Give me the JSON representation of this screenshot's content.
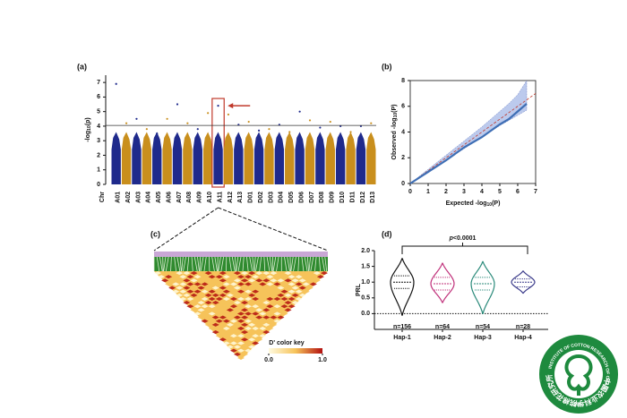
{
  "chart_data": [
    {
      "type": "manhattan",
      "panel": "(a)",
      "ylabel": {
        "main": "-log",
        "sub": "10",
        "tail": "(p)"
      },
      "xlabel": "Chr",
      "categories": [
        "A01",
        "A02",
        "A03",
        "A04",
        "A05",
        "A06",
        "A07",
        "A08",
        "A09",
        "A10",
        "A11",
        "A12",
        "A13",
        "D01",
        "D02",
        "D03",
        "D04",
        "D05",
        "D06",
        "D07",
        "D08",
        "D09",
        "D10",
        "D11",
        "D12",
        "D13"
      ],
      "values": [
        6.9,
        4.2,
        4.5,
        3.8,
        3.5,
        4.5,
        5.5,
        4.2,
        3.8,
        4.9,
        5.4,
        4.8,
        4.1,
        4.3,
        3.7,
        3.8,
        4.1,
        3.6,
        5.0,
        4.4,
        3.9,
        4.3,
        4.0,
        3.6,
        4.0,
        4.2
      ],
      "colors": [
        "#1f2a8c",
        "#c98f1d"
      ],
      "threshold": 4.05,
      "highlight": "A11",
      "ylim": [
        0,
        7.5
      ],
      "yticks": [
        0,
        1,
        2,
        3,
        4,
        5,
        6,
        7
      ]
    },
    {
      "type": "line",
      "panel": "(b)",
      "xlabel": {
        "main": "Expected -log",
        "sub": "10",
        "tail": "(P)"
      },
      "ylabel": {
        "main": "Observed -log",
        "sub": "10",
        "tail": "(P)"
      },
      "x": [
        0,
        1,
        2,
        3,
        4,
        5,
        5.5,
        6,
        6.5
      ],
      "values": [
        0,
        0.9,
        1.8,
        2.8,
        3.6,
        4.6,
        5.0,
        5.6,
        6.2
      ],
      "band_upper": [
        0,
        1.1,
        2.2,
        3.3,
        4.4,
        5.6,
        6.2,
        6.9,
        8.0
      ],
      "band_lower": [
        0,
        0.9,
        1.8,
        2.7,
        3.6,
        4.5,
        4.9,
        5.3,
        5.7
      ],
      "color": "#3f6fb5",
      "band_color": "#9fb4e6",
      "ref_color": "#c0392b",
      "xlim": [
        0,
        7
      ],
      "ylim": [
        0,
        8
      ],
      "xticks": [
        0,
        1,
        2,
        3,
        4,
        5,
        6,
        7
      ],
      "yticks": [
        0,
        2,
        4,
        6,
        8
      ]
    },
    {
      "type": "heatmap",
      "panel": "(c)",
      "key_title": "D' color key",
      "key_ticks": [
        {
          "value": 0,
          "label": "0.0"
        },
        {
          "value": 1,
          "label": "1.0"
        }
      ],
      "key_colors": [
        "#fffbe0",
        "#f6c35a",
        "#b3100f"
      ]
    },
    {
      "type": "violin",
      "panel": "(d)",
      "ylabel": "PRL",
      "pvalue": {
        "sym": "p",
        "rest": "<0.0001"
      },
      "categories": [
        "Hap-1",
        "Hap-2",
        "Hap-3",
        "Hap-4"
      ],
      "n_labels": [
        "n=156",
        "n=64",
        "n=54",
        "n=28"
      ],
      "colors": [
        "#111111",
        "#c0307a",
        "#2a8a7a",
        "#3a3a8a"
      ],
      "min": [
        -0.05,
        0.35,
        0.0,
        0.65
      ],
      "q1": [
        0.8,
        0.75,
        0.75,
        0.85
      ],
      "median": [
        1.0,
        0.95,
        0.95,
        1.0
      ],
      "q3": [
        1.2,
        1.15,
        1.15,
        1.1
      ],
      "max": [
        1.75,
        1.6,
        1.65,
        1.35
      ],
      "ylim": [
        -0.5,
        2.0
      ],
      "yticks": [
        {
          "value": 0,
          "label": "0.0"
        },
        {
          "value": 0.5,
          "label": "0.5"
        },
        {
          "value": 1,
          "label": "1.0"
        },
        {
          "value": 1.5,
          "label": "1.5"
        },
        {
          "value": 2,
          "label": "2.0"
        }
      ]
    }
  ],
  "logo": {
    "chinese": "中国农业科学院棉花研究所",
    "english": "INSTITUTE OF COTTON RESEARCH OF CAAS",
    "year": "1957"
  }
}
